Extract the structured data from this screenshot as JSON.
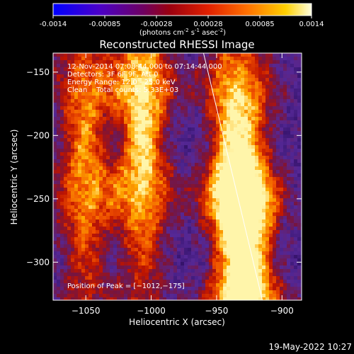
{
  "colorbar": {
    "ticks": [
      "-0.0014",
      "-0.00085",
      "-0.00028",
      "0.00028",
      "0.00085",
      "0.0014"
    ],
    "unit_main": "(photons cm",
    "unit_exp1": "-2",
    "unit_mid": " s",
    "unit_exp2": "-1",
    "unit_tail": " asec",
    "unit_exp3": "-2",
    "unit_close": ")"
  },
  "chart_data": {
    "type": "heatmap",
    "title": "Reconstructed RHESSI Image",
    "xlabel": "Heliocentric X (arcsec)",
    "ylabel": "Heliocentric Y (arcsec)",
    "xlim": [
      -1075,
      -885
    ],
    "ylim": [
      -330,
      -135
    ],
    "x_ticks": [
      -1050,
      -1000,
      -950,
      -900
    ],
    "y_ticks": [
      -150,
      -200,
      -250,
      -300
    ],
    "x_tick_labels": [
      "−1050",
      "−1000",
      "−950",
      "−900"
    ],
    "y_tick_labels": [
      "−150",
      "−200",
      "−250",
      "−300"
    ],
    "colorbar_range": [
      -0.0014,
      0.0014
    ],
    "peak": [
      -1012,
      -175
    ],
    "info_lines": [
      "12-Nov-2014 07:08:44.000 to 07:14:44.000",
      "Detectors: 3F 6F 9F, Att 0",
      "Energy Range: 12.0 - 25.0 keV",
      "Clean    Total counts: 5.33E+03"
    ],
    "peak_text": "Position of Peak = [−1012,−175]",
    "limb_line": {
      "x_top": -960,
      "y_top": -135,
      "x_bottom": -915,
      "y_bottom": -330
    },
    "bright_ridges": [
      {
        "x": -1052,
        "y_center": -215,
        "strength": 0.75
      },
      {
        "x": -1008,
        "y_center": -190,
        "strength": 1.0
      },
      {
        "x": -940,
        "y_center": -235,
        "strength": 0.9
      },
      {
        "x": -925,
        "y_center": -300,
        "strength": 1.0
      }
    ]
  },
  "timestamp": "19-May-2022 10:27"
}
